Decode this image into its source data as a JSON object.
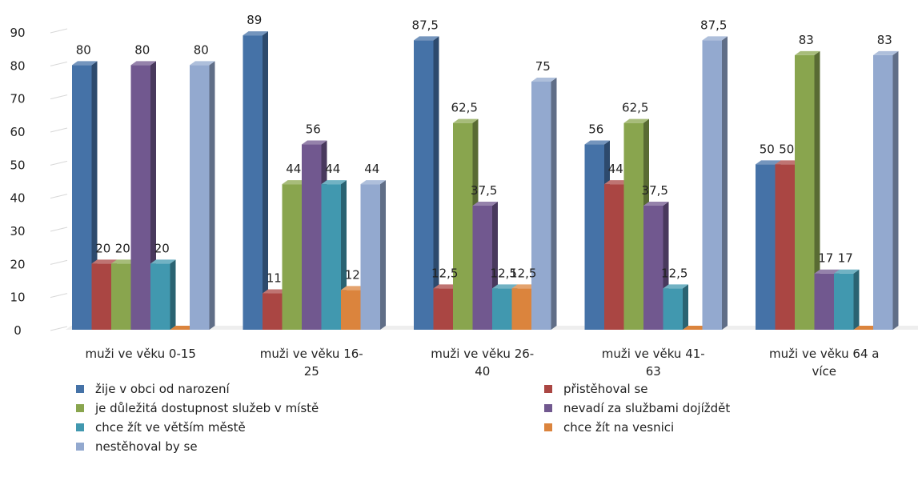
{
  "chart_data": {
    "type": "bar",
    "title": "",
    "xlabel": "",
    "ylabel": "",
    "ylim": [
      0,
      90
    ],
    "yticks": [
      0,
      10,
      20,
      30,
      40,
      50,
      60,
      70,
      80,
      90
    ],
    "grid": false,
    "legend_position": "bottom",
    "categories": [
      [
        "muži ve věku 0-15"
      ],
      [
        "muži ve věku 16-",
        "25"
      ],
      [
        "muži ve věku 26-",
        "40"
      ],
      [
        "muži ve věku 41-",
        "63"
      ],
      [
        "muži ve věku 64 a",
        "více"
      ]
    ],
    "series": [
      {
        "name": "žije v obci od narození",
        "color": "#4572A7",
        "values": [
          80,
          89,
          87.5,
          56,
          50
        ],
        "labels": [
          "80",
          "89",
          "87,5",
          "56",
          "50"
        ]
      },
      {
        "name": "přistěhoval se",
        "color": "#AA4643",
        "values": [
          20,
          11,
          12.5,
          44,
          50
        ],
        "labels": [
          "20",
          "11",
          "12,5",
          "44",
          "50"
        ]
      },
      {
        "name": "je důležitá dostupnost služeb v místě",
        "color": "#89A54E",
        "values": [
          20,
          44,
          62.5,
          62.5,
          83
        ],
        "labels": [
          "20",
          "44",
          "62,5",
          "62,5",
          "83"
        ]
      },
      {
        "name": "nevadí za službami dojíždět",
        "color": "#71588F",
        "values": [
          80,
          56,
          37.5,
          37.5,
          17
        ],
        "labels": [
          "80",
          "56",
          "37,5",
          "37,5",
          "17"
        ]
      },
      {
        "name": "chce žít ve větším městě",
        "color": "#4198AF",
        "values": [
          20,
          44,
          12.5,
          12.5,
          17
        ],
        "labels": [
          "20",
          "44",
          "12,5",
          "12,5",
          "17"
        ]
      },
      {
        "name": "chce žít na vesnici",
        "color": "#DB843D",
        "values": [
          0,
          12,
          12.5,
          0,
          0
        ],
        "labels": [
          "",
          "12",
          "12,5",
          "",
          ""
        ]
      },
      {
        "name": "nestěhoval by se",
        "color": "#93A9CF",
        "values": [
          80,
          44,
          75,
          87.5,
          83
        ],
        "labels": [
          "80",
          "44",
          "75",
          "87,5",
          "83"
        ]
      }
    ]
  }
}
